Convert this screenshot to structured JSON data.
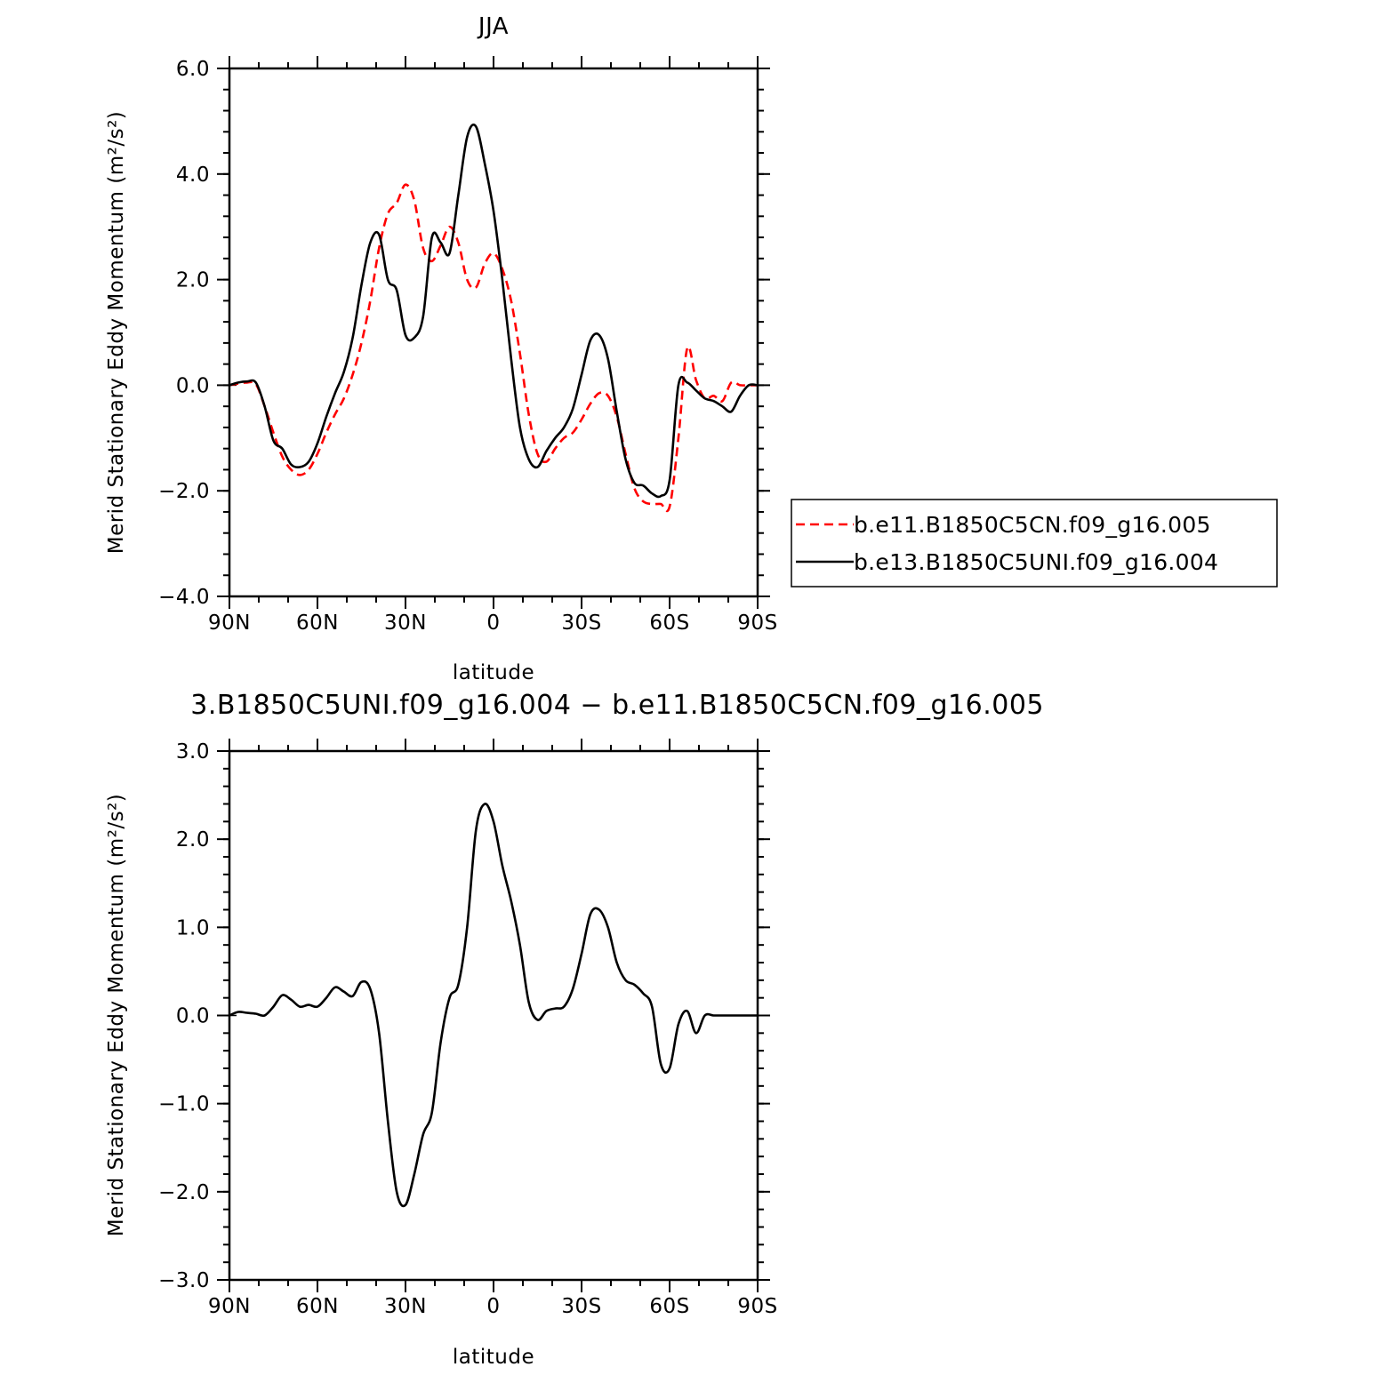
{
  "chart_data": [
    {
      "type": "line",
      "title": "JJA",
      "xlabel": "latitude",
      "ylabel": "Merid Stationary Eddy Momentum (m²/s²)",
      "xlim": [
        90,
        -90
      ],
      "ylim": [
        -4.0,
        6.0
      ],
      "xticks": [
        90,
        60,
        30,
        0,
        -30,
        -60,
        -90
      ],
      "xtick_labels": [
        "90N",
        "60N",
        "30N",
        "0",
        "30S",
        "60S",
        "90S"
      ],
      "yticks": [
        -4.0,
        -2.0,
        0.0,
        2.0,
        4.0,
        6.0
      ],
      "ytick_labels": [
        "−4.0",
        "−2.0",
        "0.0",
        "2.0",
        "4.0",
        "6.0"
      ],
      "legend": "right",
      "series": [
        {
          "name": "b.e11.B1850C5CN.f09_g16.005",
          "color": "#ff0000",
          "dash": "dashed",
          "x": [
            90,
            87,
            84,
            81,
            78,
            75,
            72,
            69,
            66,
            63,
            60,
            57,
            54,
            51,
            48,
            45,
            42,
            39,
            36,
            33,
            30,
            27,
            24,
            21,
            18,
            15,
            12,
            9,
            6,
            3,
            0,
            -3,
            -6,
            -9,
            -12,
            -15,
            -18,
            -21,
            -24,
            -27,
            -30,
            -33,
            -36,
            -39,
            -42,
            -45,
            -48,
            -51,
            -54,
            -57,
            -60,
            -63,
            -66,
            -69,
            -72,
            -75,
            -78,
            -81,
            -84,
            -87,
            -90
          ],
          "y": [
            0.0,
            0.03,
            0.05,
            0.02,
            -0.4,
            -0.9,
            -1.35,
            -1.6,
            -1.7,
            -1.6,
            -1.3,
            -0.9,
            -0.55,
            -0.25,
            0.2,
            0.8,
            1.6,
            2.6,
            3.25,
            3.45,
            3.8,
            3.5,
            2.6,
            2.35,
            2.65,
            3.0,
            2.7,
            2.0,
            1.85,
            2.3,
            2.5,
            2.2,
            1.6,
            0.6,
            -0.55,
            -1.3,
            -1.45,
            -1.2,
            -1.0,
            -0.9,
            -0.65,
            -0.35,
            -0.15,
            -0.2,
            -0.6,
            -1.3,
            -1.95,
            -2.2,
            -2.25,
            -2.25,
            -2.3,
            -1.0,
            0.7,
            0.1,
            -0.25,
            -0.2,
            -0.3,
            0.05,
            0.0,
            0.0,
            0.0
          ]
        },
        {
          "name": "b.e13.B1850C5UNI.f09_g16.004",
          "color": "#000000",
          "dash": "solid",
          "x": [
            90,
            87,
            84,
            81,
            78,
            75,
            72,
            69,
            66,
            63,
            60,
            57,
            54,
            51,
            48,
            45,
            42,
            39,
            36,
            33,
            30,
            27,
            24,
            21,
            18,
            15,
            12,
            9,
            6,
            3,
            0,
            -3,
            -6,
            -9,
            -12,
            -15,
            -18,
            -21,
            -24,
            -27,
            -30,
            -33,
            -36,
            -39,
            -42,
            -45,
            -48,
            -51,
            -54,
            -57,
            -60,
            -63,
            -66,
            -69,
            -72,
            -75,
            -78,
            -81,
            -84,
            -87,
            -90
          ],
          "y": [
            0.0,
            0.05,
            0.07,
            0.05,
            -0.4,
            -1.05,
            -1.2,
            -1.5,
            -1.55,
            -1.45,
            -1.1,
            -0.6,
            -0.15,
            0.25,
            0.9,
            1.9,
            2.7,
            2.85,
            2.0,
            1.8,
            0.95,
            0.9,
            1.3,
            2.8,
            2.7,
            2.5,
            3.6,
            4.7,
            4.9,
            4.2,
            3.3,
            2.0,
            0.5,
            -0.8,
            -1.4,
            -1.55,
            -1.25,
            -1.0,
            -0.8,
            -0.45,
            0.2,
            0.85,
            0.95,
            0.5,
            -0.5,
            -1.4,
            -1.85,
            -1.9,
            -2.05,
            -2.1,
            -1.8,
            0.0,
            0.05,
            -0.1,
            -0.25,
            -0.3,
            -0.4,
            -0.5,
            -0.2,
            0.0,
            0.0
          ]
        }
      ]
    },
    {
      "type": "line",
      "title": "3.B1850C5UNI.f09_g16.004 − b.e11.B1850C5CN.f09_g16.005",
      "xlabel": "latitude",
      "ylabel": "Merid Stationary Eddy Momentum (m²/s²)",
      "xlim": [
        90,
        -90
      ],
      "ylim": [
        -3.0,
        3.0
      ],
      "xticks": [
        90,
        60,
        30,
        0,
        -30,
        -60,
        -90
      ],
      "xtick_labels": [
        "90N",
        "60N",
        "30N",
        "0",
        "30S",
        "60S",
        "90S"
      ],
      "yticks": [
        -3.0,
        -2.0,
        -1.0,
        0.0,
        1.0,
        2.0,
        3.0
      ],
      "ytick_labels": [
        "−3.0",
        "−2.0",
        "−1.0",
        "0.0",
        "1.0",
        "2.0",
        "3.0"
      ],
      "series": [
        {
          "color": "#000000",
          "dash": "solid",
          "x": [
            90,
            87,
            84,
            81,
            78,
            75,
            72,
            69,
            66,
            63,
            60,
            57,
            54,
            51,
            48,
            45,
            42,
            39,
            36,
            33,
            30,
            27,
            24,
            21,
            18,
            15,
            12,
            9,
            6,
            3,
            0,
            -3,
            -6,
            -9,
            -12,
            -15,
            -18,
            -21,
            -24,
            -27,
            -30,
            -33,
            -36,
            -39,
            -42,
            -45,
            -48,
            -51,
            -54,
            -57,
            -60,
            -63,
            -66,
            -69,
            -72,
            -75,
            -78,
            -81,
            -84,
            -87,
            -90
          ],
          "y": [
            0.0,
            0.04,
            0.03,
            0.02,
            0.0,
            0.1,
            0.23,
            0.18,
            0.1,
            0.12,
            0.1,
            0.2,
            0.32,
            0.27,
            0.22,
            0.38,
            0.3,
            -0.2,
            -1.2,
            -2.0,
            -2.15,
            -1.8,
            -1.35,
            -1.1,
            -0.3,
            0.2,
            0.35,
            1.0,
            2.1,
            2.4,
            2.2,
            1.7,
            1.3,
            0.8,
            0.15,
            -0.05,
            0.05,
            0.08,
            0.1,
            0.3,
            0.7,
            1.15,
            1.2,
            1.0,
            0.6,
            0.4,
            0.35,
            0.25,
            0.1,
            -0.55,
            -0.6,
            -0.1,
            0.05,
            -0.2,
            0.0,
            0.0,
            0.0,
            0.0,
            0.0,
            0.0,
            0.0
          ]
        }
      ]
    }
  ]
}
